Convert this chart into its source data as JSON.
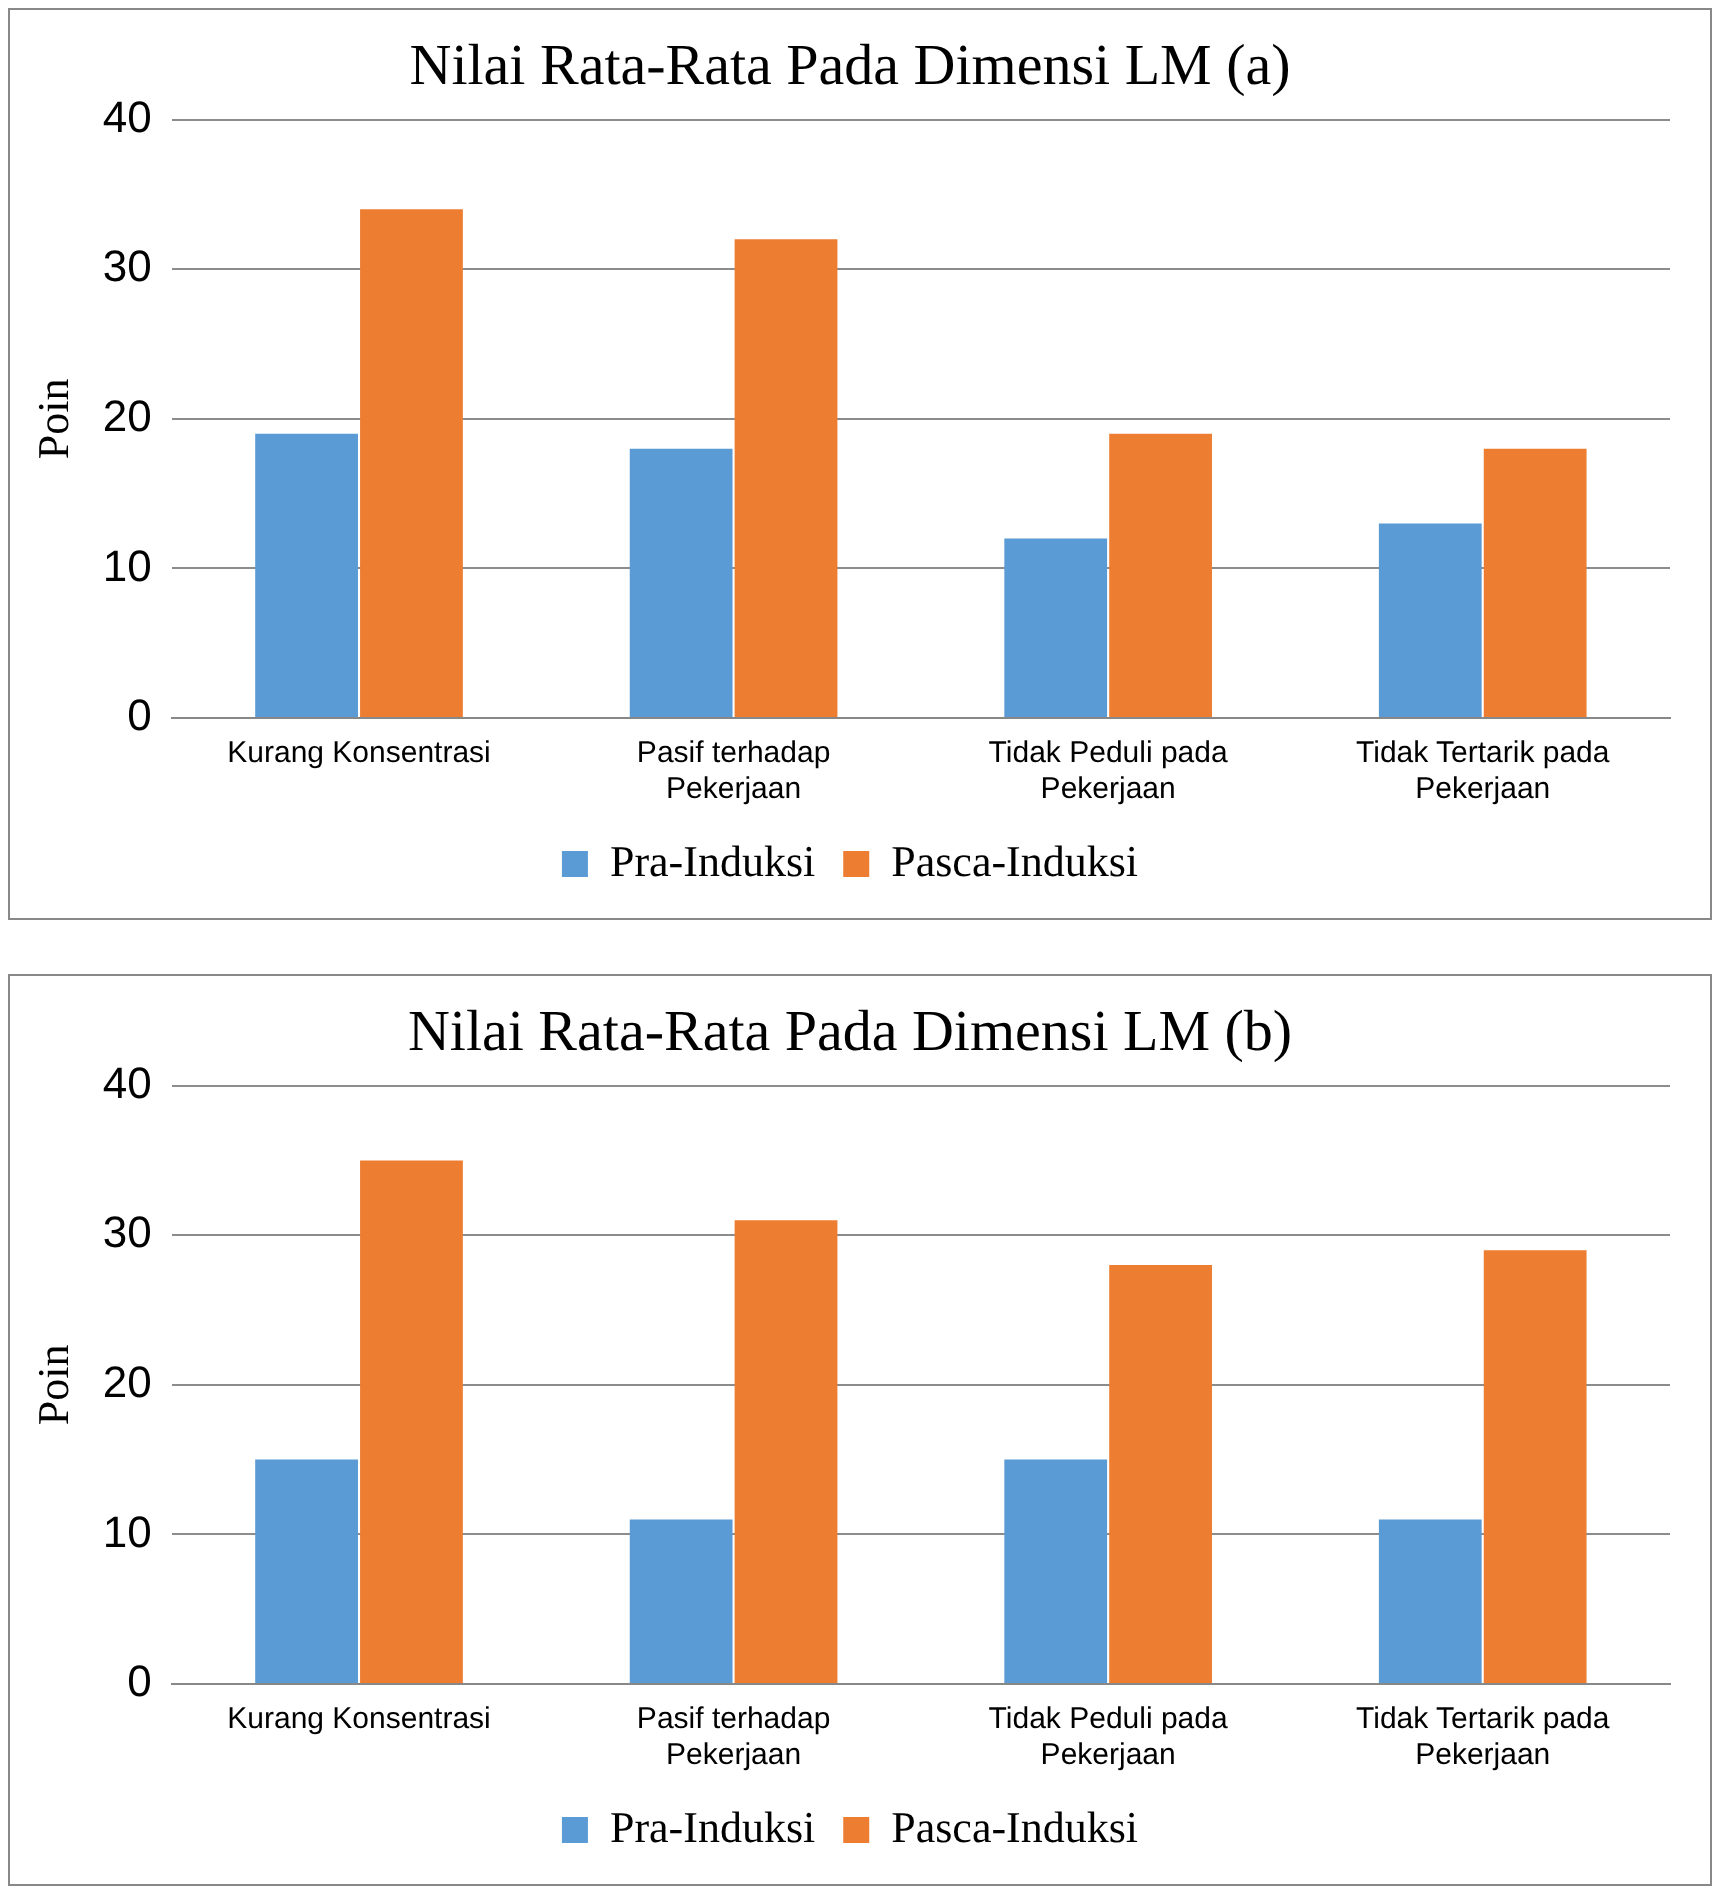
{
  "chart_data": [
    {
      "type": "bar",
      "title": "Nilai Rata-Rata Pada Dimensi LM (a)",
      "ylabel": "Poin",
      "categories": [
        "Kurang Konsentrasi",
        "Pasif terhadap Pekerjaan",
        "Tidak Peduli pada Pekerjaan",
        "Tidak Tertarik pada Pekerjaan"
      ],
      "series": [
        {
          "name": "Pra-Induksi",
          "color": "#5b9bd5",
          "values": [
            19,
            18,
            12,
            13
          ]
        },
        {
          "name": "Pasca-Induksi",
          "color": "#ed7d31",
          "values": [
            34,
            32,
            19,
            18
          ]
        }
      ],
      "ylim": [
        0,
        40
      ],
      "yticks": [
        0,
        10,
        20,
        30,
        40
      ],
      "grid": "y",
      "legend": "bottom"
    },
    {
      "type": "bar",
      "title": "Nilai Rata-Rata Pada Dimensi LM (b)",
      "ylabel": "Poin",
      "categories": [
        "Kurang Konsentrasi",
        "Pasif terhadap Pekerjaan",
        "Tidak Peduli pada Pekerjaan",
        "Tidak Tertarik pada Pekerjaan"
      ],
      "series": [
        {
          "name": "Pra-Induksi",
          "color": "#5b9bd5",
          "values": [
            15,
            11,
            15,
            11
          ]
        },
        {
          "name": "Pasca-Induksi",
          "color": "#ed7d31",
          "values": [
            35,
            31,
            28,
            29
          ]
        }
      ],
      "ylim": [
        0,
        40
      ],
      "yticks": [
        0,
        10,
        20,
        30,
        40
      ],
      "grid": "y",
      "legend": "bottom"
    }
  ]
}
